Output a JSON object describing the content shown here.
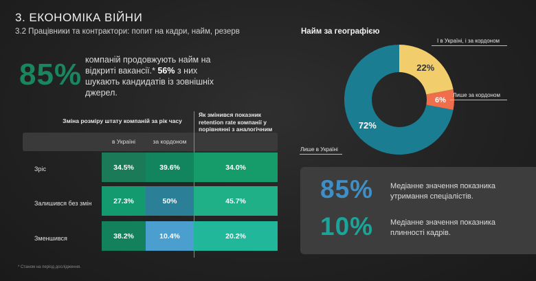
{
  "header": {
    "title": "3. ЕКОНОМІКА ВІЙНИ",
    "subtitle": "3.2 Працівники та контрактори: попит на кадри, найм, резерв"
  },
  "hiring_stat": {
    "value": "85%",
    "text_before": "компаній продовжують найм на відкриті вакансії.* ",
    "highlight": "56%",
    "text_after": " з них шукають кандидатів із зовнішніх джерел."
  },
  "table": {
    "left_header": "Зміна розміру штату компаній за рік часу",
    "right_header": "Як змінився показник retention rate компанії у порівнянні з аналогічним періодом 2022?",
    "columns": [
      "в Україні",
      "за кордоном"
    ],
    "rows": [
      {
        "label": "Зріс",
        "ukraine": "34.5%",
        "abroad": "39.6%",
        "retention": "34.0%"
      },
      {
        "label": "Залишився без змін",
        "ukraine": "27.3%",
        "abroad": "50%",
        "retention": "45.7%"
      },
      {
        "label": "Зменшився",
        "ukraine": "38.2%",
        "abroad": "10.4%",
        "retention": "20.2%"
      }
    ],
    "cell_colors": [
      [
        "#1b7a58",
        "#12855e",
        "#169b6b"
      ],
      [
        "#139a6e",
        "#2b7f97",
        "#1fb087"
      ],
      [
        "#13815c",
        "#4a9fce",
        "#21b79a"
      ]
    ]
  },
  "footnote": "* Станом на період дослідження.",
  "geo": {
    "title": "Найм за географією",
    "segments": [
      {
        "label": "Лише в Україні",
        "value": 72,
        "display": "72%",
        "color": "#1b7d92"
      },
      {
        "label": "І в Україні, і за кордоном",
        "value": 22,
        "display": "22%",
        "color": "#f2cd6b"
      },
      {
        "label": "Лише за кордоном",
        "value": 6,
        "display": "6%",
        "color": "#ef6f4c"
      }
    ]
  },
  "medians": [
    {
      "value": "85%",
      "text": "Медіанне значення показника утримання спеціалістів."
    },
    {
      "value": "10%",
      "text": "Медіанне значення показника плинності кадрів."
    }
  ]
}
